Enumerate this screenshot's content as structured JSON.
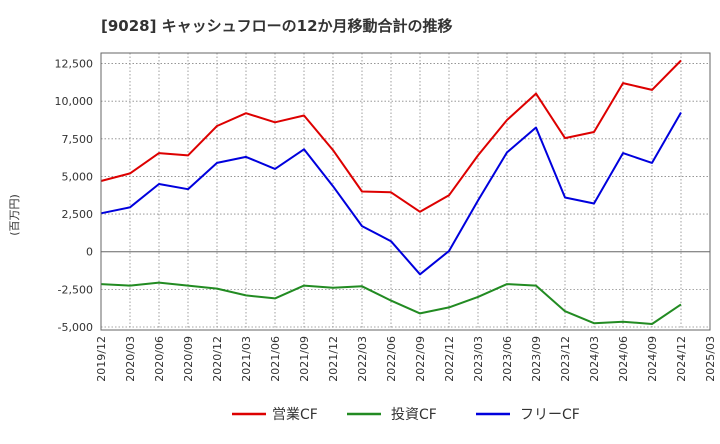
{
  "chart_data": {
    "type": "line",
    "title": "[9028]  キャッシュフローの12か月移動合計の推移",
    "ylabel": "(百万円)",
    "xlabel": "",
    "ylim": [
      -5200,
      13200
    ],
    "yticks": [
      12500,
      10000,
      7500,
      5000,
      2500,
      0,
      -2500,
      -5000
    ],
    "ytick_labels": [
      "12,500",
      "10,000",
      "7,500",
      "5,000",
      "2,500",
      "0",
      "-2,500",
      "-5,000"
    ],
    "categories": [
      "2019/12",
      "2020/03",
      "2020/06",
      "2020/09",
      "2020/12",
      "2021/03",
      "2021/06",
      "2021/09",
      "2021/12",
      "2022/03",
      "2022/06",
      "2022/09",
      "2022/12",
      "2023/03",
      "2023/06",
      "2023/09",
      "2023/12",
      "2024/03",
      "2024/06",
      "2024/09",
      "2024/12",
      "2025/03"
    ],
    "series": [
      {
        "name": "営業CF",
        "color": "#dd0000",
        "values": [
          4700,
          5200,
          6550,
          6400,
          8350,
          9200,
          8600,
          9050,
          6750,
          4000,
          3950,
          2650,
          3750,
          6400,
          8750,
          10500,
          7550,
          7950,
          11200,
          10750,
          12700,
          null
        ]
      },
      {
        "name": "投資CF",
        "color": "#228b22",
        "values": [
          -2150,
          -2250,
          -2050,
          -2250,
          -2450,
          -2900,
          -3100,
          -2250,
          -2400,
          -2300,
          -3250,
          -4100,
          -3700,
          -3000,
          -2150,
          -2250,
          -3950,
          -4750,
          -4650,
          -4800,
          -3500,
          null
        ]
      },
      {
        "name": "フリーCF",
        "color": "#0000dd",
        "values": [
          2550,
          2950,
          4500,
          4150,
          5900,
          6300,
          5500,
          6800,
          4350,
          1700,
          700,
          -1500,
          50,
          3400,
          6600,
          8250,
          3600,
          3200,
          6550,
          5900,
          9250,
          null
        ]
      }
    ],
    "legend": "bottom"
  }
}
